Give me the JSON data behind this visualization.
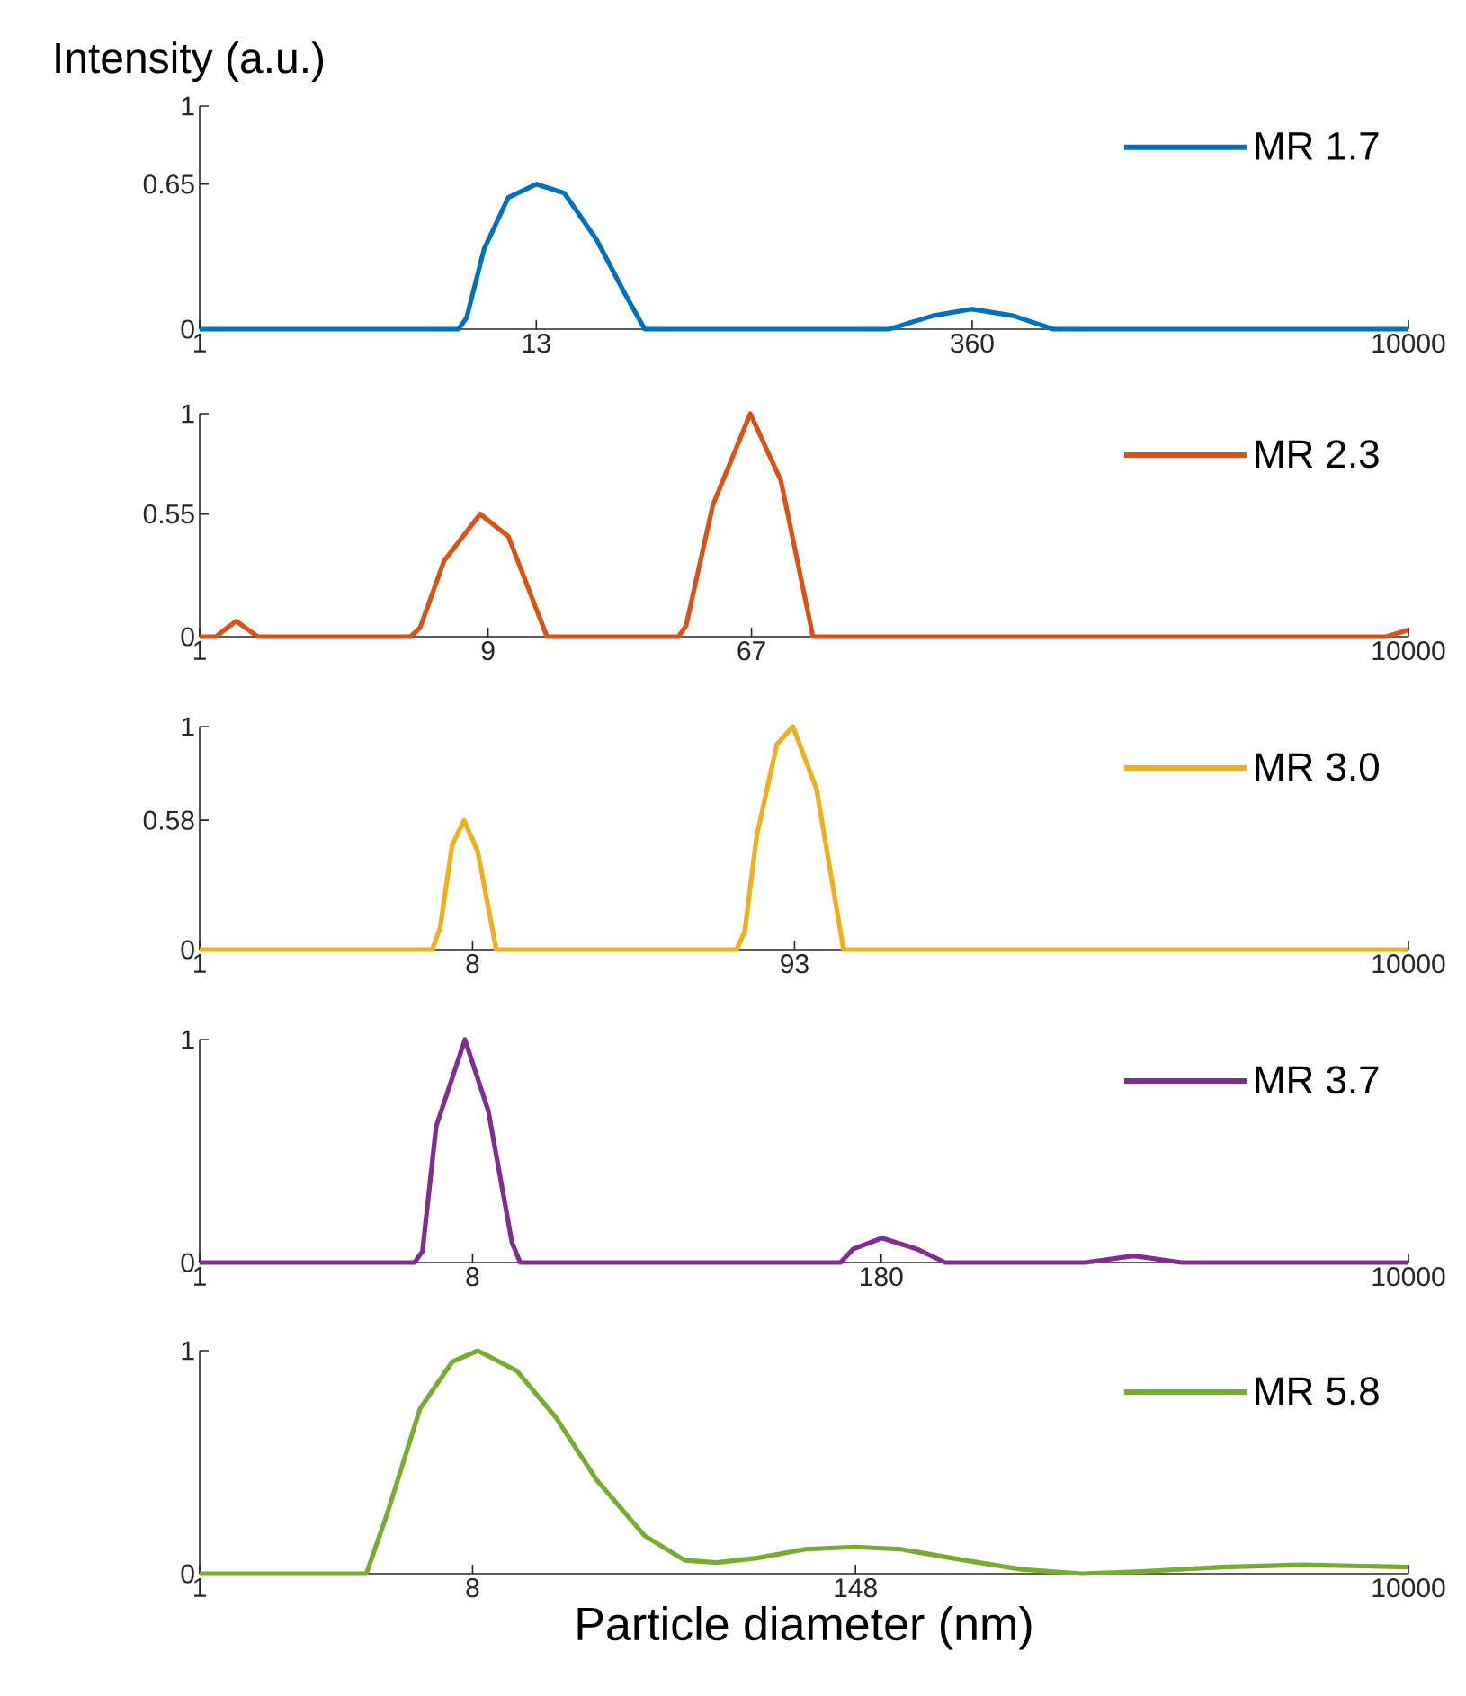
{
  "chart_data": [
    {
      "type": "line",
      "ylabel": "Intensity (a.u.)",
      "log": "x",
      "xlim": [
        1,
        10000
      ],
      "xticks": [
        1,
        13,
        360,
        10000
      ],
      "ylim": [
        0,
        1
      ],
      "yticks": [
        0,
        0.65,
        1
      ],
      "legend": "top right",
      "marker": "none",
      "line_style": "solid",
      "series": [
        {
          "name": "MR 1.7",
          "color": "#0072bd",
          "x": [
            1,
            7.19,
            7.64,
            8.74,
            10.5,
            13,
            16.1,
            20.6,
            25.5,
            29.7,
            191,
            267,
            358,
            492,
            668,
            10000
          ],
          "values": [
            0,
            0,
            0.05,
            0.36,
            0.59,
            0.65,
            0.61,
            0.4,
            0.16,
            0,
            0,
            0.06,
            0.09,
            0.06,
            0,
            0
          ]
        }
      ]
    },
    {
      "type": "line",
      "log": "x",
      "xlim": [
        1,
        10000
      ],
      "xticks": [
        1,
        9,
        67,
        10000
      ],
      "ylim": [
        0,
        1
      ],
      "yticks": [
        0,
        0.55,
        1
      ],
      "legend": "top right",
      "marker": "none",
      "line_style": "solid",
      "series": [
        {
          "name": "MR 2.3",
          "color": "#d95319",
          "x": [
            1,
            1.13,
            1.32,
            1.56,
            4.99,
            5.36,
            6.44,
            8.48,
            10.5,
            14.1,
            38.4,
            40.7,
            49.9,
            66.4,
            83.8,
            107,
            8430,
            10000
          ],
          "values": [
            0,
            0,
            0.07,
            0,
            0,
            0.04,
            0.34,
            0.55,
            0.45,
            0,
            0,
            0.05,
            0.59,
            1,
            0.7,
            0,
            0,
            0.03
          ]
        }
      ]
    },
    {
      "type": "line",
      "log": "x",
      "xlim": [
        1,
        10000
      ],
      "xticks": [
        1,
        8,
        93,
        10000
      ],
      "ylim": [
        0,
        1
      ],
      "yticks": [
        0,
        0.58,
        1
      ],
      "legend": "top right",
      "marker": "none",
      "line_style": "solid",
      "series": [
        {
          "name": "MR 3.0",
          "color": "#edb120",
          "x": [
            1,
            5.88,
            6.25,
            6.85,
            7.5,
            8.32,
            9.58,
            59.8,
            63.6,
            69.7,
            81.3,
            91.8,
            110,
            135,
            10000
          ],
          "values": [
            0,
            0,
            0.1,
            0.47,
            0.58,
            0.44,
            0,
            0,
            0.08,
            0.51,
            0.92,
            1,
            0.72,
            0,
            0
          ]
        }
      ]
    },
    {
      "type": "line",
      "log": "x",
      "xlim": [
        1,
        10000
      ],
      "xticks": [
        1,
        8,
        180,
        10000
      ],
      "ylim": [
        0,
        1
      ],
      "yticks": [
        0,
        1
      ],
      "legend": "top right",
      "marker": "none",
      "line_style": "solid",
      "series": [
        {
          "name": "MR 3.7",
          "color": "#7e2f8e",
          "x": [
            1,
            5.14,
            5.46,
            6.06,
            7.55,
            9.02,
            10.8,
            11.5,
            132,
            145,
            181,
            237,
            293,
            853,
            1230,
            1775,
            10000
          ],
          "values": [
            0,
            0,
            0.05,
            0.61,
            1,
            0.68,
            0.09,
            0,
            0,
            0.06,
            0.11,
            0.06,
            0,
            0,
            0.03,
            0,
            0
          ]
        }
      ]
    },
    {
      "type": "line",
      "xlabel": "Particle diameter (nm)",
      "log": "x",
      "xlim": [
        1,
        10000
      ],
      "xticks": [
        1,
        8,
        148,
        10000
      ],
      "ylim": [
        0,
        1
      ],
      "yticks": [
        0,
        1
      ],
      "legend": "top right",
      "marker": "none",
      "line_style": "solid",
      "series": [
        {
          "name": "MR 5.8",
          "color": "#77ac30",
          "x": [
            1,
            3.56,
            4.2,
            5.36,
            6.85,
            8.32,
            11.2,
            15.1,
            20.6,
            29.7,
            40.3,
            51.4,
            69.8,
            101,
            148,
            209,
            341,
            523,
            828,
            1310,
            2410,
            4440,
            10000
          ],
          "values": [
            0,
            0,
            0.28,
            0.74,
            0.95,
            1,
            0.91,
            0.7,
            0.42,
            0.17,
            0.06,
            0.05,
            0.07,
            0.11,
            0.12,
            0.11,
            0.06,
            0.02,
            0,
            0.01,
            0.03,
            0.04,
            0.03
          ]
        }
      ]
    }
  ]
}
